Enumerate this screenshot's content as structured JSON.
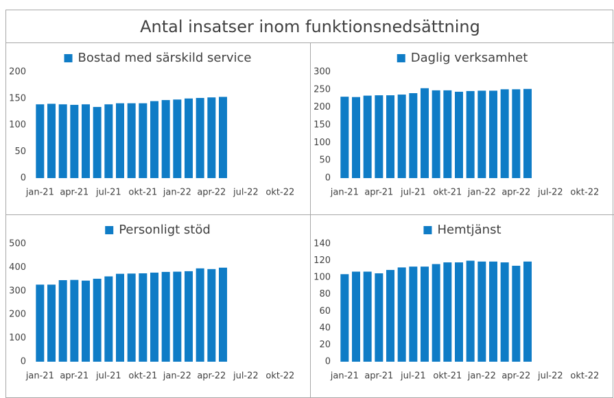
{
  "title": "Antal insatser inom funktionsnedsättning",
  "chart_data": [
    {
      "type": "bar",
      "categories": [
        "jan-21",
        null,
        null,
        "apr-21",
        null,
        null,
        "jul-21",
        null,
        null,
        "okt-21",
        null,
        null,
        "jan-22",
        null,
        null,
        "apr-22",
        null,
        null,
        "jul-22",
        null,
        null,
        "okt-22",
        null,
        null
      ],
      "series": [
        {
          "name": "Bostad med särskild service",
          "color": "#0f7cc6",
          "values": [
            139,
            140,
            139,
            138,
            139,
            134,
            139,
            141,
            141,
            141,
            145,
            147,
            148,
            150,
            151,
            152,
            153,
            null,
            null,
            null,
            null,
            null,
            null,
            null
          ]
        }
      ],
      "ylim": [
        0,
        200
      ],
      "yticks": [
        0,
        50,
        100,
        150,
        200
      ],
      "grid": false,
      "legend": "top"
    },
    {
      "type": "bar",
      "categories": [
        "jan-21",
        null,
        null,
        "apr-21",
        null,
        null,
        "jul-21",
        null,
        null,
        "okt-21",
        null,
        null,
        "jan-22",
        null,
        null,
        "apr-22",
        null,
        null,
        "jul-22",
        null,
        null,
        "okt-22",
        null,
        null
      ],
      "series": [
        {
          "name": "Daglig verksamhet",
          "color": "#0f7cc6",
          "values": [
            230,
            229,
            233,
            234,
            234,
            236,
            240,
            254,
            248,
            248,
            244,
            246,
            247,
            247,
            251,
            251,
            252,
            null,
            null,
            null,
            null,
            null,
            null,
            null
          ]
        }
      ],
      "ylim": [
        0,
        300
      ],
      "yticks": [
        0,
        50,
        100,
        150,
        200,
        250,
        300
      ],
      "grid": false,
      "legend": "top"
    },
    {
      "type": "bar",
      "categories": [
        "jan-21",
        null,
        null,
        "apr-21",
        null,
        null,
        "jul-21",
        null,
        null,
        "okt-21",
        null,
        null,
        "jan-22",
        null,
        null,
        "apr-22",
        null,
        null,
        "jul-22",
        null,
        null,
        "okt-22",
        null,
        null
      ],
      "series": [
        {
          "name": "Personligt stöd",
          "color": "#0f7cc6",
          "values": [
            327,
            327,
            346,
            347,
            344,
            352,
            362,
            373,
            374,
            375,
            378,
            381,
            382,
            384,
            396,
            393,
            399,
            null,
            null,
            null,
            null,
            null,
            null,
            null
          ]
        }
      ],
      "ylim": [
        0,
        500
      ],
      "yticks": [
        0,
        100,
        200,
        300,
        400,
        500
      ],
      "grid": false,
      "legend": "top"
    },
    {
      "type": "bar",
      "categories": [
        "jan-21",
        null,
        null,
        "apr-21",
        null,
        null,
        "jul-21",
        null,
        null,
        "okt-21",
        null,
        null,
        "jan-22",
        null,
        null,
        "apr-22",
        null,
        null,
        "jul-22",
        null,
        null,
        "okt-22",
        null,
        null
      ],
      "series": [
        {
          "name": "Hemtjänst",
          "color": "#0f7cc6",
          "values": [
            104,
            107,
            107,
            105,
            109,
            112,
            113,
            113,
            116,
            118,
            118,
            120,
            119,
            119,
            118,
            114,
            119,
            null,
            null,
            null,
            null,
            null,
            null,
            null
          ]
        }
      ],
      "ylim": [
        0,
        140
      ],
      "yticks": [
        0,
        20,
        40,
        60,
        80,
        100,
        120,
        140
      ],
      "grid": false,
      "legend": "top"
    }
  ]
}
